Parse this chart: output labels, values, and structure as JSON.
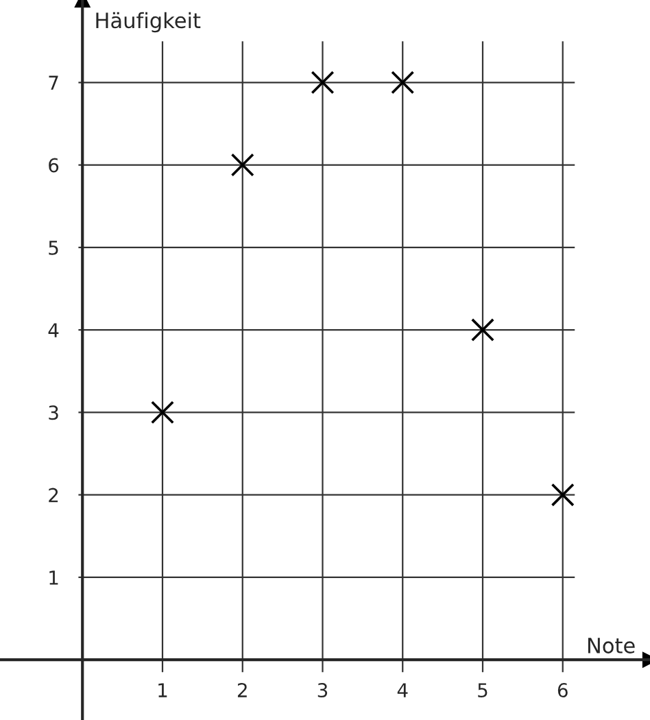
{
  "chart_data": {
    "type": "scatter",
    "xlabel": "Note",
    "ylabel": "Häufigkeit",
    "x": [
      1,
      2,
      3,
      4,
      5,
      6
    ],
    "values": [
      3,
      6,
      7,
      7,
      4,
      2
    ],
    "color": "#000000",
    "marker": "cross",
    "grid": true,
    "xlim": [
      -1.03,
      7.09
    ],
    "ylim": [
      -0.73,
      8.0
    ],
    "xticks": [
      1,
      2,
      3,
      4,
      5,
      6
    ],
    "yticks": [
      1,
      2,
      3,
      4,
      5,
      6,
      7
    ]
  }
}
